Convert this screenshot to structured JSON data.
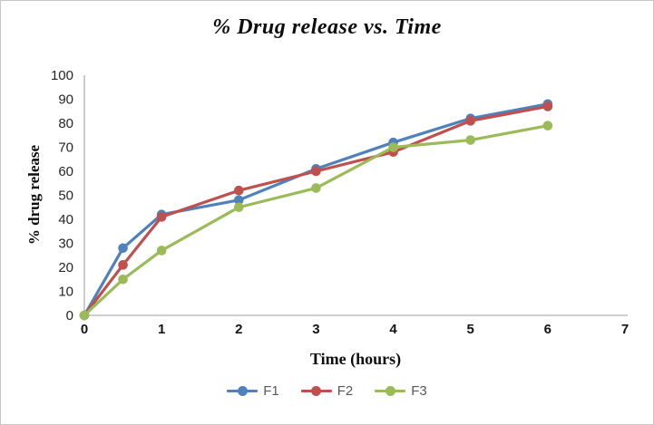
{
  "chart": {
    "title": "% Drug release vs. Time",
    "x_axis_label": "Time (hours)",
    "y_axis_label": "% drug release"
  },
  "chart_data": {
    "type": "line",
    "title": "% Drug release vs. Time",
    "xlabel": "Time (hours)",
    "ylabel": "% drug release",
    "x": [
      0,
      0.5,
      1,
      2,
      3,
      4,
      5,
      6
    ],
    "series": [
      {
        "name": "F1",
        "color": "#4F81BD",
        "values": [
          0,
          28,
          42,
          48,
          61,
          72,
          82,
          88
        ]
      },
      {
        "name": "F2",
        "color": "#C0504D",
        "values": [
          0,
          21,
          41,
          52,
          60,
          68,
          81,
          87
        ]
      },
      {
        "name": "F3",
        "color": "#9BBB59",
        "values": [
          0,
          15,
          27,
          45,
          53,
          70,
          73,
          79
        ]
      }
    ],
    "xlim": [
      0,
      7
    ],
    "ylim": [
      0,
      100
    ],
    "x_ticks": [
      0,
      1,
      2,
      3,
      4,
      5,
      6,
      7
    ],
    "y_ticks": [
      0,
      10,
      20,
      30,
      40,
      50,
      60,
      70,
      80,
      90,
      100
    ],
    "grid": false,
    "legend_position": "bottom",
    "axis_color": "#BFBFBF",
    "tick_label_color": "#262626",
    "legend_text_color": "#595959"
  }
}
